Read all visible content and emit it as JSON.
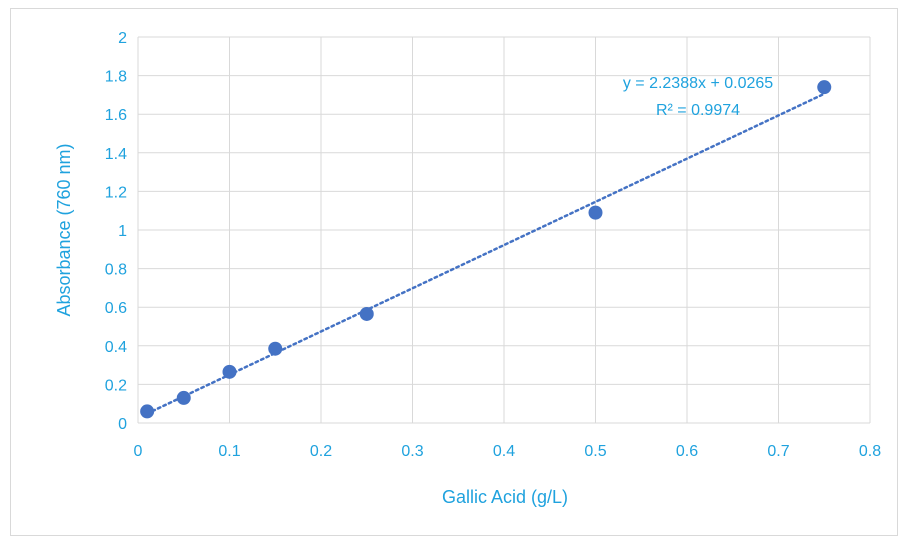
{
  "chart_data": {
    "type": "scatter",
    "title": "",
    "xlabel": "Gallic Acid (g/L)",
    "ylabel": "Absorbance (760 nm)",
    "xlim": [
      0,
      0.8
    ],
    "ylim": [
      0,
      2
    ],
    "x_ticks": [
      "0",
      "0.1",
      "0.2",
      "0.3",
      "0.4",
      "0.5",
      "0.6",
      "0.7",
      "0.8"
    ],
    "y_ticks": [
      "0",
      "0.2",
      "0.4",
      "0.6",
      "0.8",
      "1",
      "1.2",
      "1.4",
      "1.6",
      "1.8",
      "2"
    ],
    "grid": true,
    "series": [
      {
        "points": [
          {
            "x": 0.01,
            "y": 0.06
          },
          {
            "x": 0.05,
            "y": 0.13
          },
          {
            "x": 0.1,
            "y": 0.265
          },
          {
            "x": 0.15,
            "y": 0.385
          },
          {
            "x": 0.25,
            "y": 0.565
          },
          {
            "x": 0.5,
            "y": 1.09
          },
          {
            "x": 0.75,
            "y": 1.74
          }
        ],
        "color": "#4472c4"
      }
    ],
    "trendline": {
      "type": "linear",
      "slope": 2.2388,
      "intercept": 0.0265,
      "x_range": [
        0.01,
        0.75
      ],
      "style": "dotted",
      "color": "#4472c4",
      "equation_label": "y = 2.2388x + 0.0265",
      "r2_label": "R² = 0.9974"
    },
    "colors": {
      "text": "#1fa2de",
      "grid": "#d9d9d9",
      "marker": "#4472c4"
    }
  }
}
